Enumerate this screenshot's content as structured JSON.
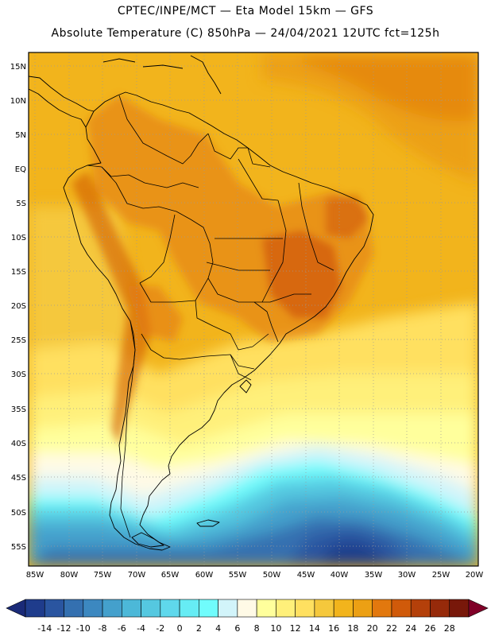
{
  "header": {
    "line1": "CPTEC/INPE/MCT —  Eta Model 15km — GFS",
    "line2": "Absolute Temperature (C) 850hPa — 24/04/2021 12UTC fct=125h"
  },
  "axes": {
    "lat_labels": [
      "15N",
      "10N",
      "5N",
      "EQ",
      "5S",
      "10S",
      "15S",
      "20S",
      "25S",
      "30S",
      "35S",
      "40S",
      "45S",
      "50S",
      "55S"
    ],
    "lon_labels": [
      "85W",
      "80W",
      "75W",
      "70W",
      "65W",
      "60W",
      "55W",
      "50W",
      "45W",
      "40W",
      "35W",
      "30W",
      "25W",
      "20W"
    ]
  },
  "colorbar": {
    "labels": [
      "-14",
      "-12",
      "-10",
      "-8",
      "-6",
      "-4",
      "-2",
      "0",
      "2",
      "4",
      "6",
      "8",
      "10",
      "12",
      "14",
      "16",
      "18",
      "20",
      "22",
      "24",
      "26",
      "28"
    ],
    "colors": [
      "#1f3c8c",
      "#2a55a0",
      "#3470b0",
      "#3c88c0",
      "#44a0cc",
      "#4cb8d8",
      "#55c8e0",
      "#5fd8ec",
      "#66ecf4",
      "#70fcfc",
      "#d2f4fa",
      "#fffae6",
      "#ffff9c",
      "#fff07a",
      "#ffe060",
      "#f5c83c",
      "#f2b41c",
      "#eca014",
      "#e2780e",
      "#d05a0a",
      "#b4400a",
      "#962a0a",
      "#78180a"
    ],
    "under_color": "#1a2a78",
    "over_color": "#800028"
  }
}
